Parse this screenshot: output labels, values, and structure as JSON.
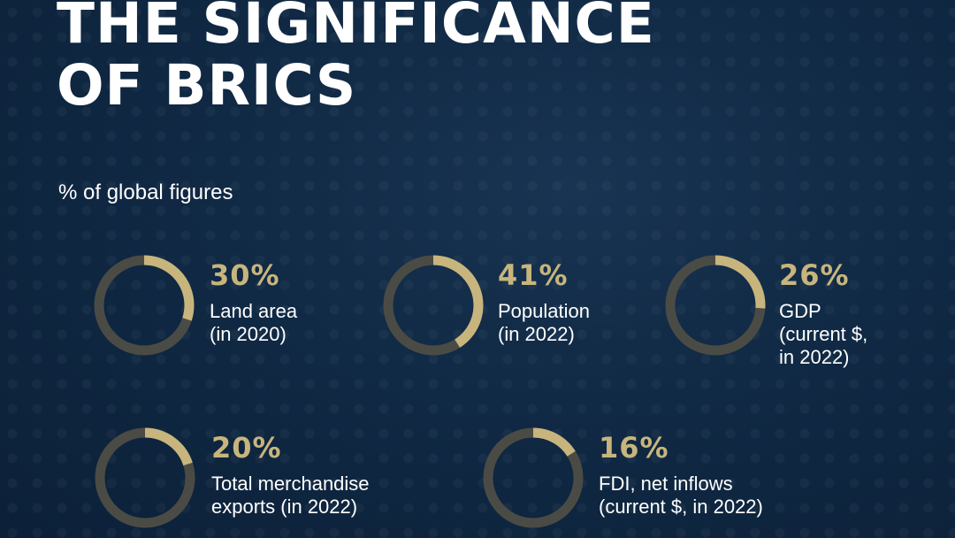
{
  "title": {
    "line1": "THE SIGNIFICANCE",
    "line2": "OF BRICS"
  },
  "subtitle": "% of global figures",
  "colors": {
    "accent": "#c7b57d",
    "track": "#4b4b45",
    "background": "#102944",
    "text": "#ffffff"
  },
  "chart_data": {
    "type": "pie",
    "title": "THE SIGNIFICANCE OF BRICS",
    "subtitle": "% of global figures",
    "items": [
      {
        "value": 30,
        "value_label": "30%",
        "label_lines": [
          "Land area",
          "(in 2020)"
        ]
      },
      {
        "value": 41,
        "value_label": "41%",
        "label_lines": [
          "Population",
          "(in 2022)"
        ]
      },
      {
        "value": 26,
        "value_label": "26%",
        "label_lines": [
          "GDP",
          "(current $,",
          "in 2022)"
        ]
      },
      {
        "value": 20,
        "value_label": "20%",
        "label_lines": [
          "Total merchandise",
          "exports (in 2022)"
        ]
      },
      {
        "value": 16,
        "value_label": "16%",
        "label_lines": [
          "FDI, net inflows",
          "(current $, in 2022)"
        ]
      }
    ]
  }
}
